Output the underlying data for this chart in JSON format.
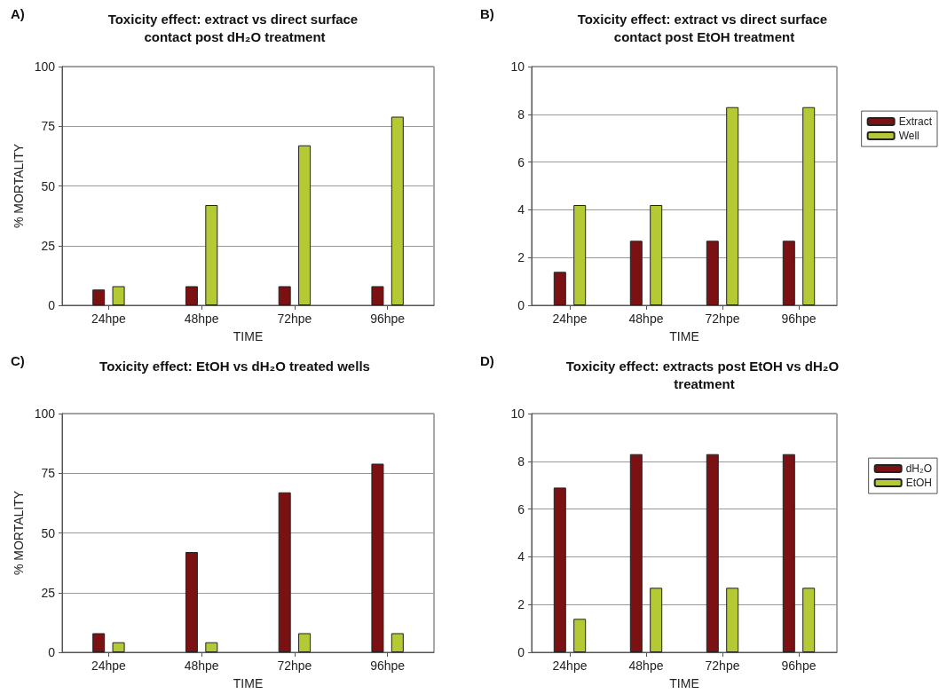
{
  "chart_data": [
    {
      "type": "bar",
      "title": "Toxicity effect: extract vs direct surface contact post dH₂O treatment",
      "annotations": [
        "A)"
      ],
      "xlabel": "TIME",
      "ylabel": "% MORTALITY",
      "categories": [
        "24hpe",
        "48hpe",
        "72hpe",
        "96hpe"
      ],
      "series": [
        {
          "color": "#7b1113",
          "values": [
            6.6,
            8,
            8,
            8
          ]
        },
        {
          "color": "#b5c934",
          "values": [
            8,
            42,
            67,
            79
          ]
        }
      ],
      "ylim": [
        0,
        100
      ],
      "yticks": [
        0,
        25,
        50,
        75,
        100
      ],
      "grid": "y",
      "legend": false
    },
    {
      "type": "bar",
      "title": "Toxicity effect: extract vs direct surface contact post EtOH treatment",
      "annotations": [
        "B)"
      ],
      "xlabel": "TIME",
      "categories": [
        "24hpe",
        "48hpe",
        "72hpe",
        "96hpe"
      ],
      "series": [
        {
          "name": "Extract",
          "color": "#7b1113",
          "values": [
            1.4,
            2.7,
            2.7,
            2.7
          ]
        },
        {
          "name": "Well",
          "color": "#b5c934",
          "values": [
            4.2,
            4.2,
            8.3,
            8.3
          ]
        }
      ],
      "ylim": [
        0,
        10
      ],
      "yticks": [
        0,
        2,
        4,
        6,
        8,
        10
      ],
      "grid": "y",
      "legend": "right"
    },
    {
      "type": "bar",
      "title": "Toxicity effect: EtOH vs dH₂O treated wells",
      "annotations": [
        "C)"
      ],
      "xlabel": "TIME",
      "ylabel": "% MORTALITY",
      "categories": [
        "24hpe",
        "48hpe",
        "72hpe",
        "96hpe"
      ],
      "series": [
        {
          "color": "#7b1113",
          "values": [
            8,
            42,
            67,
            79
          ]
        },
        {
          "color": "#b5c934",
          "values": [
            4.2,
            4.2,
            8,
            8
          ]
        }
      ],
      "ylim": [
        0,
        100
      ],
      "yticks": [
        0,
        25,
        50,
        75,
        100
      ],
      "grid": "y",
      "legend": false
    },
    {
      "type": "bar",
      "title": "Toxicity effect: extracts post EtOH vs dH₂O treatment",
      "annotations": [
        "D)"
      ],
      "xlabel": "TIME",
      "categories": [
        "24hpe",
        "48hpe",
        "72hpe",
        "96hpe"
      ],
      "series": [
        {
          "name": "dH₂O",
          "color": "#7b1113",
          "values": [
            6.9,
            8.3,
            8.3,
            8.3
          ]
        },
        {
          "name": "EtOH",
          "color": "#b5c934",
          "values": [
            1.4,
            2.7,
            2.7,
            2.7
          ]
        }
      ],
      "ylim": [
        0,
        10
      ],
      "yticks": [
        0,
        2,
        4,
        6,
        8,
        10
      ],
      "grid": "y",
      "legend": "right"
    }
  ]
}
